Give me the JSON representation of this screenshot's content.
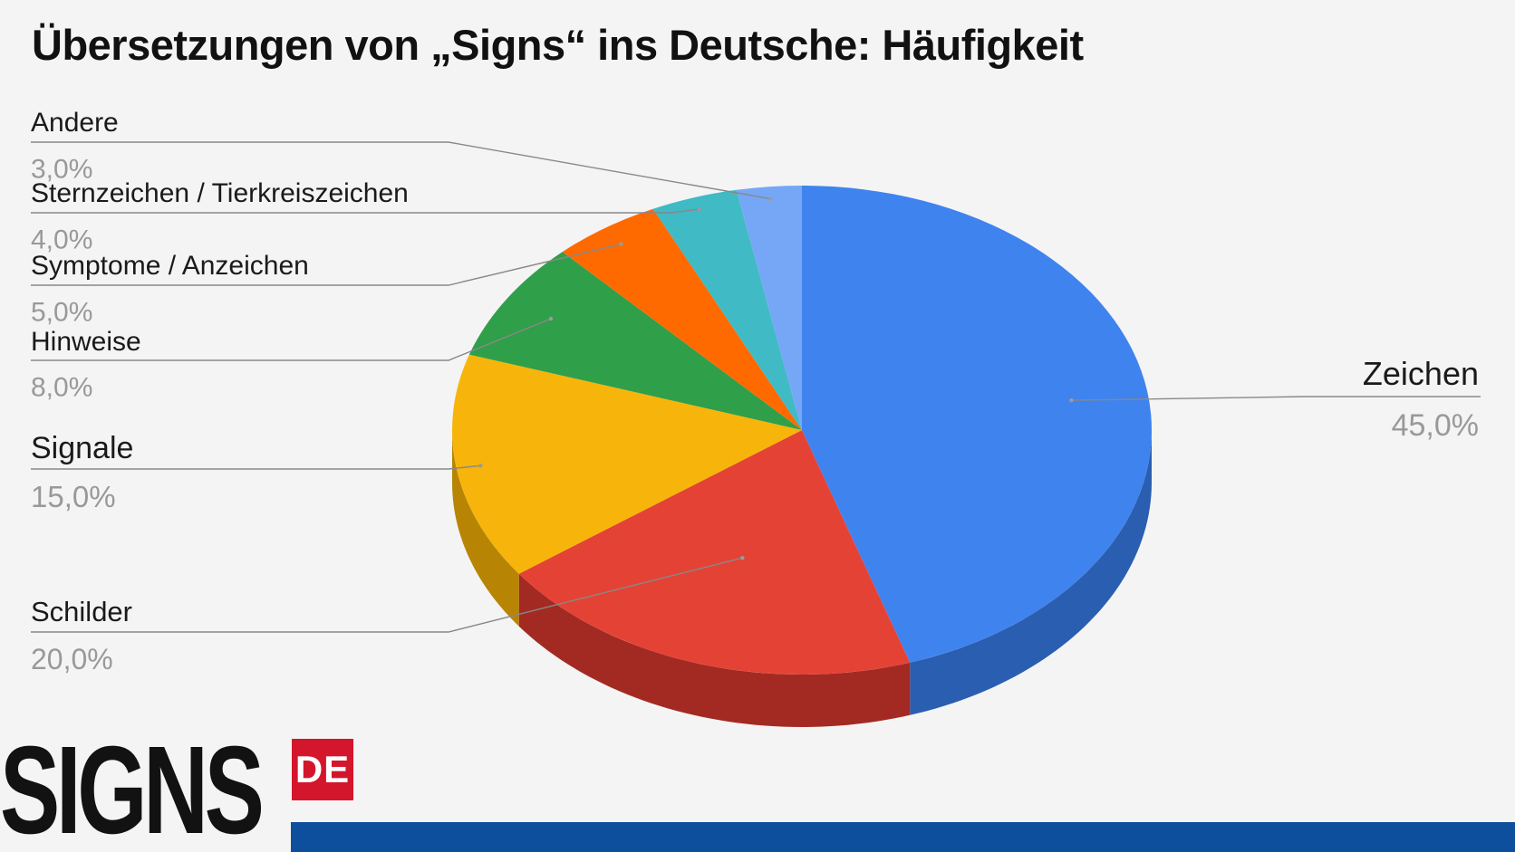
{
  "colors": {
    "background": "#f4f4f4",
    "leader_line": "#888888",
    "brand_red": "#d3162c",
    "brand_blue": "#0d4f9c"
  },
  "logo": {
    "main": "SIGNS",
    "badge": "DE"
  },
  "chart_data": {
    "type": "pie",
    "style": "3d",
    "title": "Übersetzungen von „Signs“ ins Deutsche: Häufigkeit",
    "value_unit": "%",
    "slices": [
      {
        "label": "Zeichen",
        "value": 45.0,
        "value_text": "45,0%",
        "color": "#3f83ef",
        "side_color": "#2a5eb0"
      },
      {
        "label": "Schilder",
        "value": 20.0,
        "value_text": "20,0%",
        "color": "#e54236",
        "side_color": "#a32a22"
      },
      {
        "label": "Signale",
        "value": 15.0,
        "value_text": "15,0%",
        "color": "#f7b50b",
        "side_color": "#b88404"
      },
      {
        "label": "Hinweise",
        "value": 8.0,
        "value_text": "8,0%",
        "color": "#2f9f4a",
        "side_color": "#1f7434"
      },
      {
        "label": "Symptome / Anzeichen",
        "value": 5.0,
        "value_text": "5,0%",
        "color": "#ff6a00",
        "side_color": "#bb4d00"
      },
      {
        "label": "Sternzeichen / Tierkreiszeichen",
        "value": 4.0,
        "value_text": "4,0%",
        "color": "#40bac4",
        "side_color": "#2d8990"
      },
      {
        "label": "Andere",
        "value": 3.0,
        "value_text": "3,0%",
        "color": "#76a7f7",
        "side_color": "#5580c0"
      }
    ],
    "legend": "none",
    "labels": "outside with leader lines"
  }
}
